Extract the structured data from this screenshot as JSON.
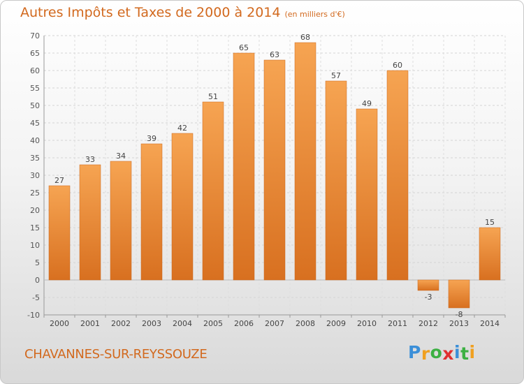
{
  "chart_data": {
    "type": "bar",
    "title": "Autres Impôts et Taxes de 2000 à 2014",
    "unit_label": "(en milliers d'€)",
    "categories": [
      "2000",
      "2001",
      "2002",
      "2003",
      "2004",
      "2005",
      "2006",
      "2007",
      "2008",
      "2009",
      "2010",
      "2011",
      "2012",
      "2013",
      "2014"
    ],
    "values": [
      27,
      33,
      34,
      39,
      42,
      51,
      65,
      63,
      68,
      57,
      49,
      60,
      -3,
      -8,
      15
    ],
    "ylim": [
      -10,
      70
    ],
    "yticks": [
      -10,
      -5,
      0,
      5,
      10,
      15,
      20,
      25,
      30,
      35,
      40,
      45,
      50,
      55,
      60,
      65,
      70
    ],
    "xlabel": "",
    "ylabel": "",
    "grid": true,
    "bar_color": "#f0973f",
    "bar_color_dark": "#d2691e"
  },
  "footer": {
    "town": "CHAVANNES-SUR-REYSSOUZE",
    "logo_letters": [
      {
        "ch": "P",
        "color": "#3b8fd8"
      },
      {
        "ch": "r",
        "color": "#f0a020"
      },
      {
        "ch": "o",
        "color": "#3cb043"
      },
      {
        "ch": "x",
        "color": "#e03030"
      },
      {
        "ch": "i",
        "color": "#3b8fd8"
      },
      {
        "ch": "t",
        "color": "#3cb043"
      },
      {
        "ch": "i",
        "color": "#f0a020"
      }
    ]
  }
}
